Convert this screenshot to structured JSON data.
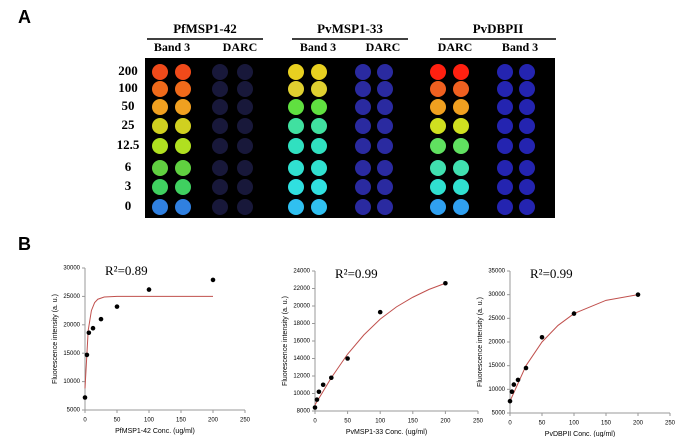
{
  "panel_a": {
    "label": "A",
    "headers": [
      "PfMSP1-42",
      "PvMSP1-33",
      "PvDBPII"
    ],
    "subheaders": [
      "Band 3",
      "DARC",
      "Band 3",
      "DARC",
      "DARC",
      "Band 3"
    ],
    "rows": [
      "200",
      "100",
      "50",
      "25",
      "12.5",
      "6",
      "3",
      "0"
    ]
  },
  "panel_b": {
    "label": "B"
  },
  "chart_data": [
    {
      "type": "scatter",
      "annotation": "R²=0.89",
      "xlabel": "PfMSP1-42 Conc. (ug/ml)",
      "ylabel": "Fluorescence intensity (a. u.)",
      "x": [
        0,
        3,
        6,
        12.5,
        25,
        50,
        100,
        200
      ],
      "values": [
        7200,
        14700,
        18600,
        19400,
        21000,
        23200,
        26200,
        27900
      ],
      "color": "#000000",
      "fit": {
        "color": "#c0504d",
        "x": [
          0,
          5,
          10,
          15,
          20,
          30,
          50,
          100,
          200
        ],
        "values": [
          8800,
          19000,
          22500,
          23900,
          24500,
          24900,
          25000,
          25000,
          25000
        ]
      },
      "xlim": [
        0,
        250
      ],
      "xticks": [
        0,
        50,
        100,
        150,
        200,
        250
      ],
      "ylim": [
        5000,
        30000
      ],
      "yticks": [
        5000,
        10000,
        15000,
        20000,
        25000,
        30000
      ]
    },
    {
      "type": "scatter",
      "annotation": "R²=0.99",
      "xlabel": "PvMSP1-33 Conc. (ug/ml)",
      "ylabel": "Fluorescence intensity (a. u.)",
      "x": [
        0,
        3,
        6,
        12.5,
        25,
        50,
        100,
        200
      ],
      "values": [
        8400,
        9300,
        10200,
        11000,
        11800,
        14000,
        19300,
        22600
      ],
      "color": "#000000",
      "fit": {
        "color": "#c0504d",
        "x": [
          0,
          25,
          50,
          75,
          100,
          125,
          150,
          175,
          200
        ],
        "values": [
          8700,
          11800,
          14500,
          16700,
          18500,
          19900,
          21000,
          21900,
          22600
        ]
      },
      "xlim": [
        0,
        250
      ],
      "xticks": [
        0,
        50,
        100,
        150,
        200,
        250
      ],
      "ylim": [
        8000,
        24000
      ],
      "yticks": [
        8000,
        10000,
        12000,
        14000,
        16000,
        18000,
        20000,
        22000,
        24000
      ]
    },
    {
      "type": "scatter",
      "annotation": "R²=0.99",
      "xlabel": "PvDBPII Conc. (ug/ml)",
      "ylabel": "Fluorescence intensity (a. u.)",
      "x": [
        0,
        3,
        6,
        12.5,
        25,
        50,
        100,
        200
      ],
      "values": [
        7500,
        9500,
        11000,
        12000,
        14500,
        21000,
        26000,
        30000
      ],
      "color": "#000000",
      "fit": {
        "color": "#c0504d",
        "x": [
          0,
          25,
          50,
          75,
          100,
          150,
          200
        ],
        "values": [
          7500,
          15000,
          20000,
          23500,
          26000,
          28800,
          30000
        ]
      },
      "xlim": [
        0,
        250
      ],
      "xticks": [
        0,
        50,
        100,
        150,
        200,
        250
      ],
      "ylim": [
        5000,
        35000
      ],
      "yticks": [
        5000,
        10000,
        15000,
        20000,
        25000,
        30000,
        35000
      ]
    }
  ]
}
